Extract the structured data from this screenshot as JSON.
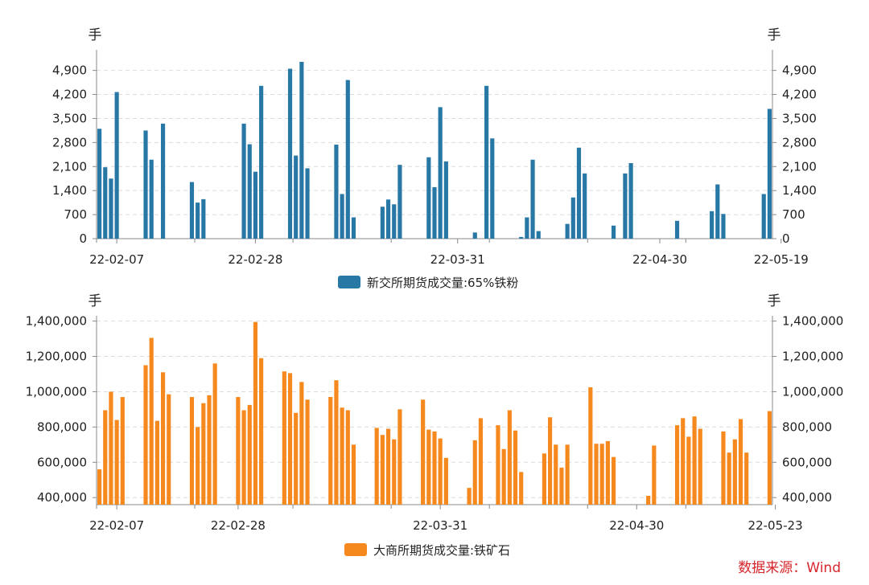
{
  "chart_data": [
    {
      "type": "bar",
      "unit_left": "手",
      "unit_right": "手",
      "series": [
        {
          "name": "新交所期货成交量:65%铁粉",
          "color": "#2878a6",
          "values": [
            3200,
            2080,
            1750,
            4270,
            null,
            null,
            null,
            null,
            3150,
            2300,
            null,
            3350,
            null,
            null,
            null,
            null,
            1650,
            1050,
            1150,
            null,
            null,
            null,
            null,
            null,
            null,
            3350,
            2750,
            1950,
            4450,
            null,
            null,
            null,
            null,
            4950,
            2420,
            5150,
            2050,
            null,
            null,
            null,
            null,
            2740,
            1300,
            4620,
            620,
            null,
            null,
            null,
            null,
            930,
            1140,
            1000,
            2150,
            null,
            null,
            null,
            null,
            2370,
            1500,
            3830,
            2250,
            null,
            null,
            null,
            null,
            180,
            null,
            4450,
            2920,
            null,
            null,
            null,
            null,
            50,
            620,
            2300,
            220,
            null,
            null,
            null,
            null,
            430,
            1200,
            2650,
            1900,
            null,
            null,
            null,
            null,
            380,
            null,
            1900,
            2200,
            null,
            null,
            null,
            null,
            null,
            null,
            null,
            520,
            null,
            null,
            null,
            null,
            null,
            800,
            1580,
            720,
            null,
            null,
            null,
            null,
            null,
            null,
            1300,
            3780
          ]
        }
      ],
      "ylim": [
        0,
        5500
      ],
      "yticks": [
        0,
        700,
        1400,
        2100,
        2800,
        3500,
        4200,
        4900
      ],
      "ytick_labels": [
        "0",
        "700",
        "1,400",
        "2,100",
        "2,800",
        "3,500",
        "4,200",
        "4,900"
      ],
      "xtick_labels": [
        {
          "label": "22-02-07",
          "index": 3
        },
        {
          "label": "22-02-28",
          "index": 27
        },
        {
          "label": "22-03-31",
          "index": 62
        },
        {
          "label": "22-04-30",
          "index": 97
        },
        {
          "label": "22-05-19",
          "index": 118
        }
      ],
      "grid": true,
      "legend_position": "bottom"
    },
    {
      "type": "bar",
      "unit_left": "手",
      "unit_right": "手",
      "series": [
        {
          "name": "大商所期货成交量:铁矿石",
          "color": "#f5891e",
          "values": [
            560000,
            895000,
            1000000,
            840000,
            970000,
            null,
            null,
            null,
            1150000,
            1305000,
            835000,
            1110000,
            985000,
            null,
            null,
            null,
            970000,
            800000,
            935000,
            980000,
            1160000,
            null,
            null,
            null,
            970000,
            895000,
            925000,
            1395000,
            1190000,
            null,
            null,
            null,
            1115000,
            1105000,
            880000,
            1055000,
            955000,
            null,
            null,
            null,
            970000,
            1065000,
            910000,
            895000,
            700000,
            null,
            null,
            null,
            795000,
            755000,
            790000,
            730000,
            900000,
            null,
            null,
            null,
            955000,
            785000,
            775000,
            735000,
            625000,
            null,
            null,
            null,
            455000,
            725000,
            850000,
            null,
            null,
            810000,
            675000,
            895000,
            780000,
            545000,
            null,
            null,
            null,
            650000,
            855000,
            700000,
            570000,
            700000,
            null,
            null,
            null,
            1025000,
            705000,
            705000,
            720000,
            630000,
            null,
            null,
            null,
            null,
            null,
            410000,
            695000,
            null,
            null,
            null,
            810000,
            850000,
            745000,
            860000,
            790000,
            null,
            null,
            null,
            775000,
            655000,
            730000,
            845000,
            655000,
            null,
            null,
            null,
            890000
          ]
        }
      ],
      "ylim": [
        360000,
        1430000
      ],
      "yticks": [
        400000,
        600000,
        800000,
        1000000,
        1200000,
        1400000
      ],
      "ytick_labels": [
        "400,000",
        "600,000",
        "800,000",
        "1,000,000",
        "1,200,000",
        "1,400,000"
      ],
      "xtick_labels": [
        {
          "label": "22-02-07",
          "index": 3
        },
        {
          "label": "22-02-28",
          "index": 24
        },
        {
          "label": "22-03-31",
          "index": 59
        },
        {
          "label": "22-04-30",
          "index": 93
        },
        {
          "label": "22-05-23",
          "index": 117
        }
      ],
      "grid": true,
      "legend_position": "bottom"
    }
  ],
  "source_label": "数据来源：Wind"
}
